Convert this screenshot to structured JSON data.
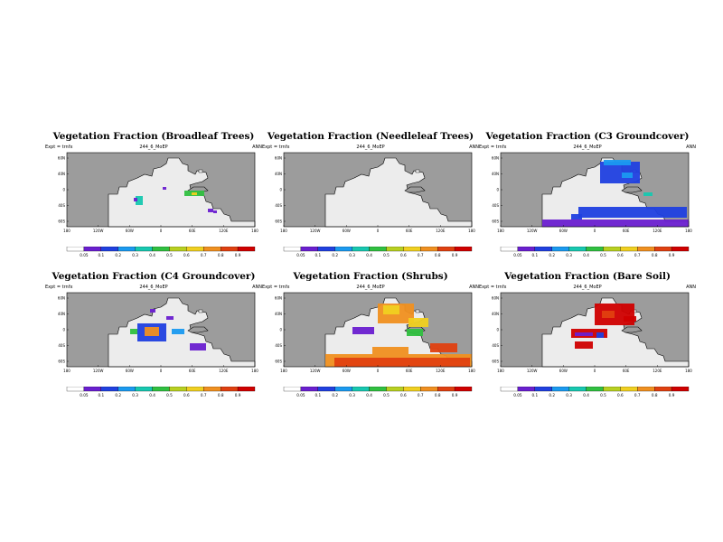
{
  "meta": {
    "left": "Expt = trnfx",
    "center": "244_6_MoEP",
    "right": "ANN"
  },
  "axes": {
    "y_ticks": [
      "60N",
      "40N",
      "0",
      "40S",
      "60S"
    ],
    "x_ticks": [
      "180",
      "120W",
      "60W",
      "0",
      "60E",
      "120E",
      "180"
    ]
  },
  "colorbar": {
    "ticks": [
      "0.05",
      "0.1",
      "0.2",
      "0.3",
      "0.4",
      "0.5",
      "0.6",
      "0.7",
      "0.8",
      "0.9"
    ],
    "colors": [
      "#ffffff",
      "#6a1fd0",
      "#2040e0",
      "#1a9af0",
      "#17c8b0",
      "#30c040",
      "#b8d020",
      "#f0d020",
      "#f09020",
      "#e04010",
      "#d00000"
    ]
  },
  "palette": {
    "ocean": "#9c9c9c",
    "land": "#ececec",
    "coast": "#000000"
  },
  "panels": [
    {
      "title": "Vegetation Fraction (Broadleaf Trees)"
    },
    {
      "title": "Vegetation Fraction (Needleleaf Trees)"
    },
    {
      "title": "Vegetation Fraction (C3 Groundcover)"
    },
    {
      "title": "Vegetation Fraction (C4 Groundcover)"
    },
    {
      "title": "Vegetation Fraction (Shrubs)"
    },
    {
      "title": "Vegetation Fraction (Bare Soil)"
    }
  ]
}
